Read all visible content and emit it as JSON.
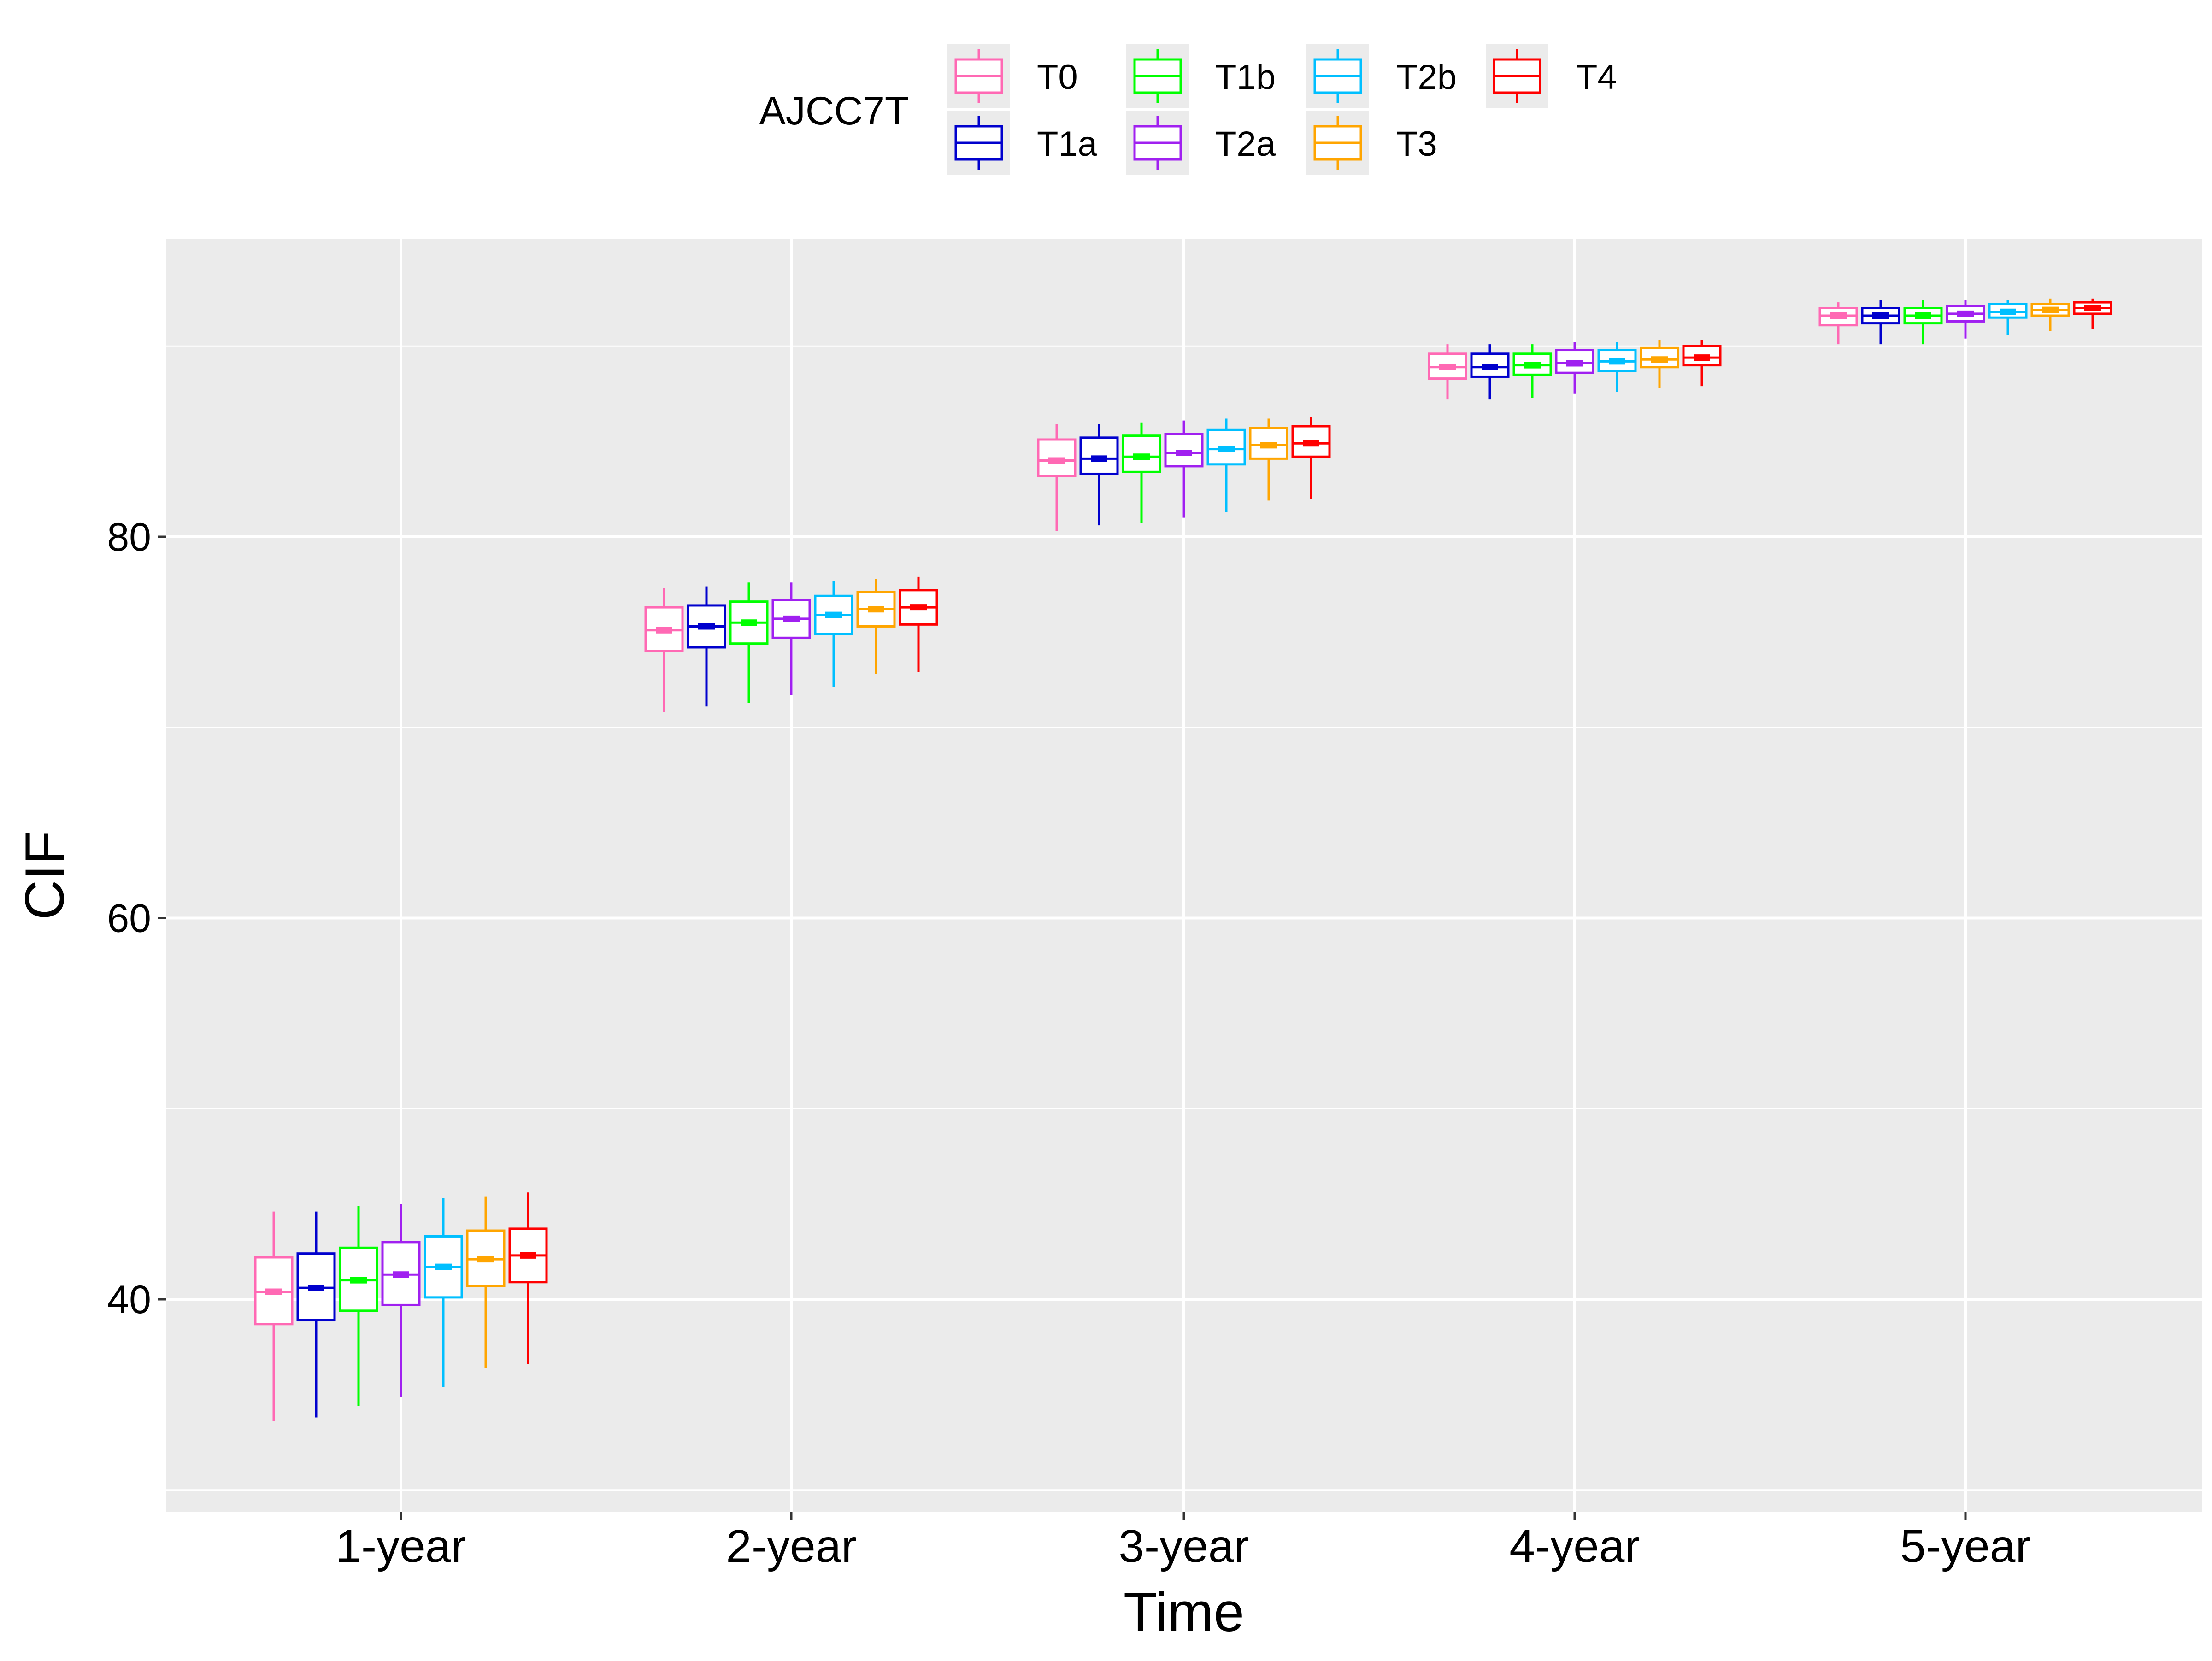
{
  "chart_data": {
    "type": "box",
    "title": "",
    "xlabel": "Time",
    "ylabel": "CIF",
    "ylim": [
      30,
      97
    ],
    "y_ticks": [
      40,
      60,
      80
    ],
    "y_minor_gridlines": [
      30,
      50,
      70,
      90
    ],
    "grid": true,
    "background": "#EBEBEB",
    "categories": [
      "1-year",
      "2-year",
      "3-year",
      "4-year",
      "5-year"
    ],
    "legend": {
      "title": "AJCC7T",
      "position": "top",
      "entries": [
        "T0",
        "T1a",
        "T1b",
        "T2a",
        "T2b",
        "T3",
        "T4"
      ]
    },
    "series": [
      {
        "name": "T0",
        "color": "#FF69B4",
        "boxes": [
          {
            "min": 33.6,
            "q1": 38.7,
            "median": 40.4,
            "q3": 42.2,
            "max": 44.6
          },
          {
            "min": 70.8,
            "q1": 74.0,
            "median": 75.1,
            "q3": 76.3,
            "max": 77.3
          },
          {
            "min": 80.3,
            "q1": 83.2,
            "median": 84.0,
            "q3": 85.1,
            "max": 85.9
          },
          {
            "min": 87.2,
            "q1": 88.3,
            "median": 88.9,
            "q3": 89.6,
            "max": 90.1
          },
          {
            "min": 90.1,
            "q1": 91.1,
            "median": 91.6,
            "q3": 92.0,
            "max": 92.3
          }
        ]
      },
      {
        "name": "T1a",
        "color": "#0000CD",
        "boxes": [
          {
            "min": 33.8,
            "q1": 38.9,
            "median": 40.6,
            "q3": 42.4,
            "max": 44.6
          },
          {
            "min": 71.1,
            "q1": 74.2,
            "median": 75.3,
            "q3": 76.4,
            "max": 77.4
          },
          {
            "min": 80.6,
            "q1": 83.3,
            "median": 84.1,
            "q3": 85.2,
            "max": 85.9
          },
          {
            "min": 87.2,
            "q1": 88.4,
            "median": 88.9,
            "q3": 89.6,
            "max": 90.1
          },
          {
            "min": 90.1,
            "q1": 91.2,
            "median": 91.6,
            "q3": 92.0,
            "max": 92.4
          }
        ]
      },
      {
        "name": "T1b",
        "color": "#00FF00",
        "boxes": [
          {
            "min": 34.4,
            "q1": 39.4,
            "median": 41.0,
            "q3": 42.7,
            "max": 44.9
          },
          {
            "min": 71.3,
            "q1": 74.4,
            "median": 75.5,
            "q3": 76.6,
            "max": 77.6
          },
          {
            "min": 80.7,
            "q1": 83.4,
            "median": 84.2,
            "q3": 85.3,
            "max": 86.0
          },
          {
            "min": 87.3,
            "q1": 88.5,
            "median": 89.0,
            "q3": 89.6,
            "max": 90.1
          },
          {
            "min": 90.1,
            "q1": 91.2,
            "median": 91.6,
            "q3": 92.0,
            "max": 92.4
          }
        ]
      },
      {
        "name": "T2a",
        "color": "#A020F0",
        "boxes": [
          {
            "min": 34.9,
            "q1": 39.7,
            "median": 41.3,
            "q3": 43.0,
            "max": 45.0
          },
          {
            "min": 71.7,
            "q1": 74.7,
            "median": 75.7,
            "q3": 76.7,
            "max": 77.6
          },
          {
            "min": 81.0,
            "q1": 83.7,
            "median": 84.4,
            "q3": 85.4,
            "max": 86.1
          },
          {
            "min": 87.5,
            "q1": 88.6,
            "median": 89.1,
            "q3": 89.8,
            "max": 90.2
          },
          {
            "min": 90.4,
            "q1": 91.3,
            "median": 91.7,
            "q3": 92.1,
            "max": 92.4
          }
        ]
      },
      {
        "name": "T2b",
        "color": "#00BFFF",
        "boxes": [
          {
            "min": 35.4,
            "q1": 40.1,
            "median": 41.7,
            "q3": 43.3,
            "max": 45.3
          },
          {
            "min": 72.1,
            "q1": 74.9,
            "median": 75.9,
            "q3": 76.9,
            "max": 77.7
          },
          {
            "min": 81.3,
            "q1": 83.8,
            "median": 84.6,
            "q3": 85.6,
            "max": 86.2
          },
          {
            "min": 87.6,
            "q1": 88.7,
            "median": 89.2,
            "q3": 89.8,
            "max": 90.2
          },
          {
            "min": 90.6,
            "q1": 91.5,
            "median": 91.8,
            "q3": 92.2,
            "max": 92.4
          }
        ]
      },
      {
        "name": "T3",
        "color": "#FFA500",
        "boxes": [
          {
            "min": 36.4,
            "q1": 40.7,
            "median": 42.1,
            "q3": 43.6,
            "max": 45.4
          },
          {
            "min": 72.8,
            "q1": 75.3,
            "median": 76.2,
            "q3": 77.1,
            "max": 77.8
          },
          {
            "min": 81.9,
            "q1": 84.1,
            "median": 84.8,
            "q3": 85.7,
            "max": 86.2
          },
          {
            "min": 87.8,
            "q1": 88.9,
            "median": 89.3,
            "q3": 89.9,
            "max": 90.3
          },
          {
            "min": 90.8,
            "q1": 91.6,
            "median": 91.9,
            "q3": 92.2,
            "max": 92.5
          }
        ]
      },
      {
        "name": "T4",
        "color": "#FF0000",
        "boxes": [
          {
            "min": 36.6,
            "q1": 40.9,
            "median": 42.3,
            "q3": 43.7,
            "max": 45.6
          },
          {
            "min": 72.9,
            "q1": 75.4,
            "median": 76.3,
            "q3": 77.2,
            "max": 77.9
          },
          {
            "min": 82.0,
            "q1": 84.2,
            "median": 84.9,
            "q3": 85.8,
            "max": 86.3
          },
          {
            "min": 87.9,
            "q1": 89.0,
            "median": 89.4,
            "q3": 90.0,
            "max": 90.3
          },
          {
            "min": 90.9,
            "q1": 91.7,
            "median": 92.0,
            "q3": 92.3,
            "max": 92.5
          }
        ]
      }
    ]
  }
}
